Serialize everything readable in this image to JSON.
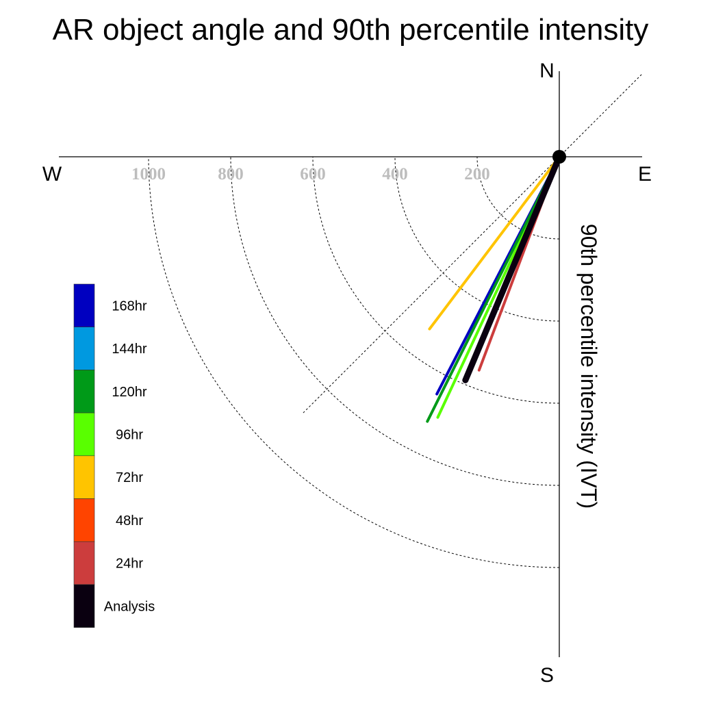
{
  "chart_data": {
    "type": "polar-vector",
    "title": "AR object angle and 90th percentile intensity",
    "ylabel": "90th percentile intensity (IVT)",
    "compass": {
      "north": "N",
      "south": "S",
      "east": "E",
      "west": "W"
    },
    "radial_ticks": [
      "200",
      "400",
      "600",
      "800",
      "1000"
    ],
    "radial_range": [
      0,
      1200
    ],
    "grid": true,
    "legend_position": "left",
    "legend": [
      {
        "label": "168hr",
        "color": "#0000c0"
      },
      {
        "label": "144hr",
        "color": "#0099e0"
      },
      {
        "label": "120hr",
        "color": "#009a18"
      },
      {
        "label": "96hr",
        "color": "#59ff00"
      },
      {
        "label": "72hr",
        "color": "#ffc400"
      },
      {
        "label": "48hr",
        "color": "#ff4400"
      },
      {
        "label": "24hr",
        "color": "#cc3d3d"
      },
      {
        "label": "Analysis",
        "color": "#0a0010"
      }
    ],
    "series": [
      {
        "name": "24hr",
        "color": "#cc3d3d",
        "angle_deg": 200.6,
        "intensity": 555
      },
      {
        "name": "96hr",
        "color": "#59ff00",
        "angle_deg": 205.0,
        "intensity": 700
      },
      {
        "name": "168hr",
        "color": "#0000c0",
        "angle_deg": 207.3,
        "intensity": 650
      },
      {
        "name": "120hr",
        "color": "#009a18",
        "angle_deg": 206.5,
        "intensity": 720
      },
      {
        "name": "72hr",
        "color": "#ffc400",
        "angle_deg": 217.0,
        "intensity": 525
      },
      {
        "name": "Analysis",
        "color": "#0a0010",
        "angle_deg": 202.8,
        "intensity": 590
      }
    ]
  }
}
